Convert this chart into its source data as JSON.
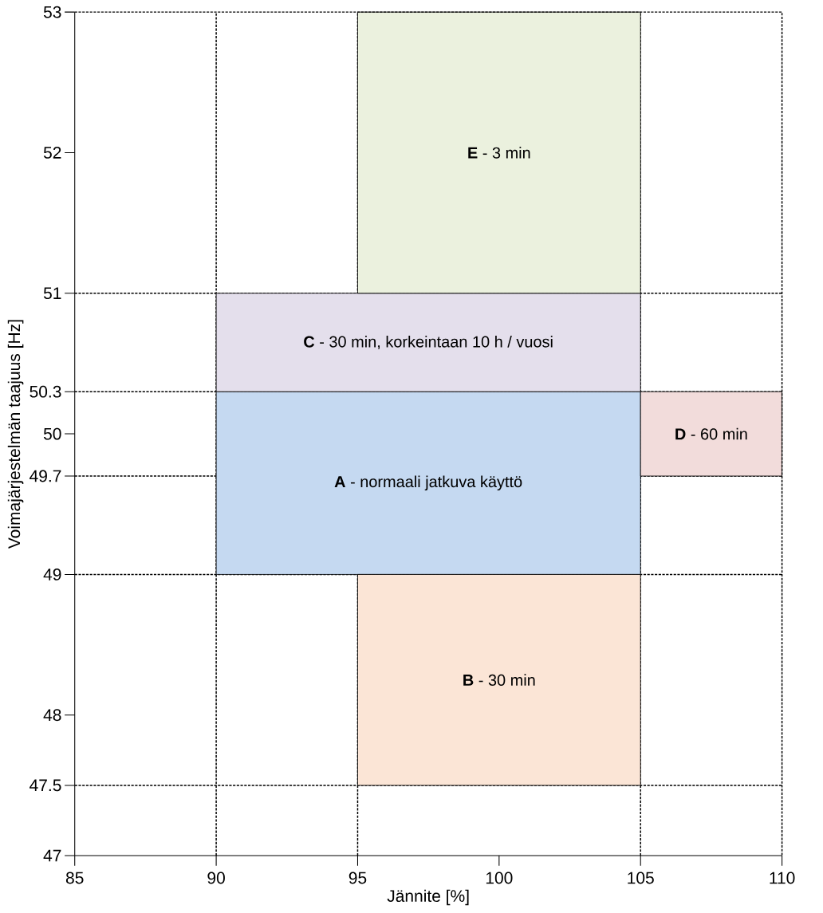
{
  "chart_data": {
    "type": "area",
    "xlabel": "Jännite [%]",
    "ylabel": "Voimajärjestelmän taajuus [Hz]",
    "xlim": [
      85,
      110
    ],
    "ylim": [
      47,
      53
    ],
    "xticks": [
      85,
      90,
      95,
      100,
      105,
      110
    ],
    "yticks": [
      47,
      47.5,
      48,
      49,
      49.7,
      50,
      50.3,
      51,
      52,
      53
    ],
    "series": [
      {
        "name": "**A** - normaali jatkuva käyttö",
        "color": "#c5d9f1",
        "x": [
          90,
          90,
          105,
          105
        ],
        "values": [
          49,
          50.3,
          50.3,
          49
        ]
      },
      {
        "name": "**B** - 30 min",
        "color": "#fbe5d6",
        "x": [
          95,
          95,
          105,
          105
        ],
        "values": [
          47.5,
          49,
          49,
          47.5
        ]
      },
      {
        "name": "**C** - 30 min, korkeintaan 10 h / vuosi",
        "color": "#e4dfec",
        "x": [
          90,
          90,
          105,
          105
        ],
        "values": [
          50.3,
          51,
          51,
          50.3
        ]
      },
      {
        "name": "**D** - 60 min",
        "color": "#f2dcdb",
        "x": [
          105,
          105,
          110,
          110
        ],
        "values": [
          49.7,
          50.3,
          50.3,
          49.7
        ]
      },
      {
        "name": "**E** - 3 min",
        "color": "#ebf1de",
        "x": [
          95,
          95,
          105,
          105
        ],
        "values": [
          51,
          53,
          53,
          51
        ]
      }
    ],
    "ref_lines": [
      {
        "axis": "x",
        "value": 90,
        "color": "#000000",
        "line_style": "dashed"
      },
      {
        "axis": "x",
        "value": 95,
        "color": "#000000",
        "line_style": "dashed"
      },
      {
        "axis": "x",
        "value": 105,
        "color": "#000000",
        "line_style": "dashed"
      },
      {
        "axis": "y",
        "value": 47.5,
        "color": "#000000",
        "line_style": "dashed"
      },
      {
        "axis": "y",
        "value": 49,
        "color": "#000000",
        "line_style": "dashed"
      },
      {
        "axis": "y",
        "value": 49.7,
        "color": "#000000",
        "line_style": "dashed"
      },
      {
        "axis": "y",
        "value": 50.3,
        "color": "#000000",
        "line_style": "dashed"
      },
      {
        "axis": "y",
        "value": 51,
        "color": "#000000",
        "line_style": "dashed"
      }
    ]
  }
}
